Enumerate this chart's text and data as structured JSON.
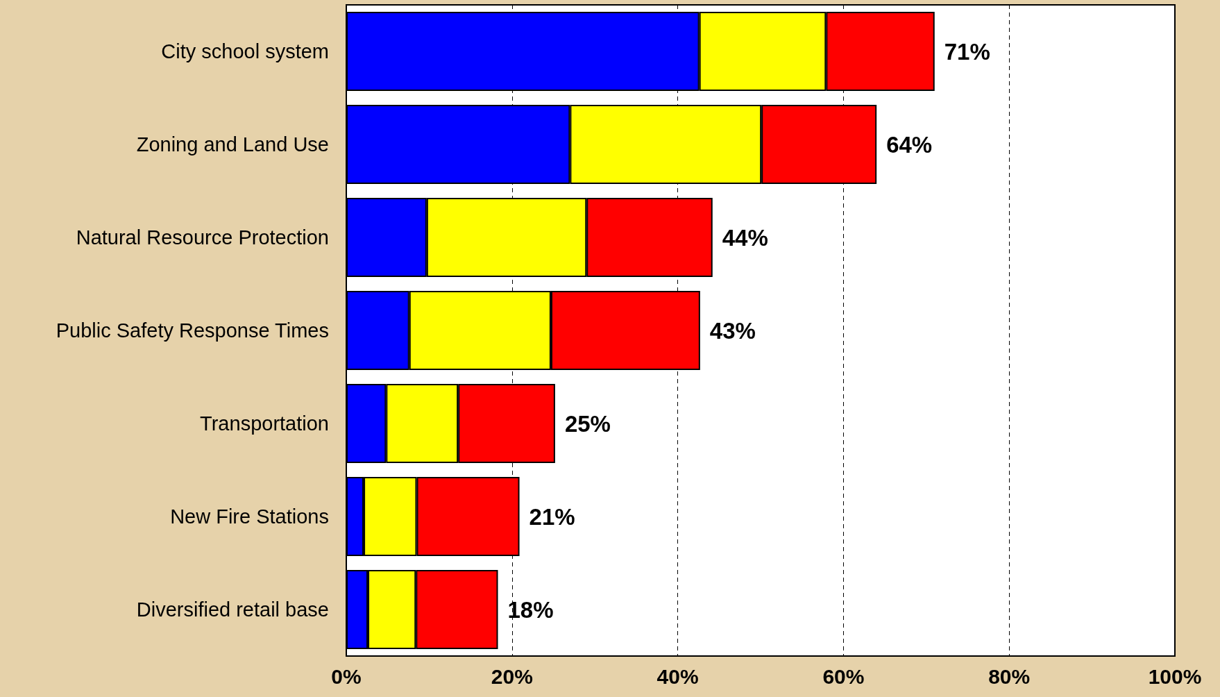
{
  "chart_data": {
    "type": "bar",
    "orientation": "horizontal",
    "stacked": true,
    "categories": [
      "City school system",
      "Zoning and Land Use",
      "Natural Resource Protection",
      "Public Safety Response Times",
      "Transportation",
      "New Fire Stations",
      "Diversified retail base"
    ],
    "series": [
      {
        "color": "#0000ff",
        "values": [
          42.6,
          27.0,
          9.7,
          7.6,
          4.8,
          2.1,
          2.6
        ]
      },
      {
        "color": "#ffff00",
        "values": [
          15.3,
          23.1,
          19.3,
          17.1,
          8.7,
          6.4,
          5.8
        ]
      },
      {
        "color": "#ff0000",
        "values": [
          13.1,
          13.9,
          15.2,
          18.0,
          11.7,
          12.4,
          9.9
        ]
      }
    ],
    "totals": [
      "71%",
      "64%",
      "44%",
      "43%",
      "25%",
      "21%",
      "18%"
    ],
    "xlim": [
      0,
      100
    ],
    "xticks": [
      {
        "value": 0,
        "label": "0%"
      },
      {
        "value": 20,
        "label": "20%"
      },
      {
        "value": 40,
        "label": "40%"
      },
      {
        "value": 60,
        "label": "60%"
      },
      {
        "value": 80,
        "label": "80%"
      },
      {
        "value": 100,
        "label": "100%"
      }
    ],
    "grid": "x"
  }
}
